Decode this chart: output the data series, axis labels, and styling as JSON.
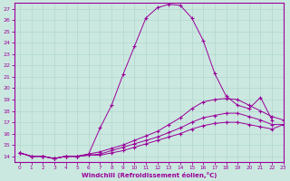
{
  "xlabel": "Windchill (Refroidissement éolien,°C)",
  "bg_color": "#cbe8e0",
  "line_color": "#990099",
  "grid_color": "#b0d8cc",
  "xmin": -0.5,
  "xmax": 23,
  "ymin": 13.5,
  "ymax": 27.5,
  "yticks": [
    14,
    15,
    16,
    17,
    18,
    19,
    20,
    21,
    22,
    23,
    24,
    25,
    26,
    27
  ],
  "xticks": [
    0,
    1,
    2,
    3,
    4,
    5,
    6,
    7,
    8,
    9,
    10,
    11,
    12,
    13,
    14,
    15,
    16,
    17,
    18,
    19,
    20,
    21,
    22,
    23
  ],
  "line1_x": [
    0,
    1,
    2,
    3,
    4,
    5,
    6,
    7,
    8,
    9,
    10,
    11,
    12,
    13,
    14,
    15,
    16,
    17,
    18,
    19,
    20,
    21,
    22
  ],
  "line1_y": [
    14.3,
    14.0,
    14.0,
    13.8,
    14.0,
    14.0,
    14.2,
    16.5,
    18.5,
    21.2,
    23.7,
    26.2,
    27.1,
    27.4,
    27.3,
    26.2,
    24.2,
    21.3,
    19.3,
    18.5,
    18.2,
    19.2,
    17.2
  ],
  "line2_x": [
    0,
    1,
    2,
    3,
    4,
    5,
    6,
    7,
    8,
    9,
    10,
    11,
    12,
    13,
    14,
    15,
    16,
    17,
    18,
    19,
    20,
    21,
    22,
    23
  ],
  "line2_y": [
    14.3,
    14.0,
    14.0,
    13.8,
    14.0,
    14.0,
    14.2,
    14.4,
    14.7,
    15.0,
    15.4,
    15.8,
    16.2,
    16.8,
    17.4,
    18.2,
    18.8,
    19.0,
    19.1,
    19.0,
    18.5,
    18.0,
    17.5,
    17.2
  ],
  "line3_x": [
    0,
    1,
    2,
    3,
    4,
    5,
    6,
    7,
    8,
    9,
    10,
    11,
    12,
    13,
    14,
    15,
    16,
    17,
    18,
    19,
    20,
    21,
    22,
    23
  ],
  "line3_y": [
    14.3,
    14.0,
    14.0,
    13.8,
    14.0,
    14.0,
    14.1,
    14.2,
    14.5,
    14.8,
    15.1,
    15.4,
    15.7,
    16.1,
    16.5,
    17.0,
    17.4,
    17.6,
    17.8,
    17.8,
    17.5,
    17.2,
    16.8,
    16.8
  ],
  "line4_x": [
    0,
    1,
    2,
    3,
    4,
    5,
    6,
    7,
    8,
    9,
    10,
    11,
    12,
    13,
    14,
    15,
    16,
    17,
    18,
    19,
    20,
    21,
    22,
    23
  ],
  "line4_y": [
    14.3,
    14.0,
    14.0,
    13.8,
    14.0,
    14.0,
    14.1,
    14.1,
    14.3,
    14.5,
    14.8,
    15.1,
    15.4,
    15.7,
    16.0,
    16.4,
    16.7,
    16.9,
    17.0,
    17.0,
    16.8,
    16.6,
    16.4,
    16.8
  ]
}
